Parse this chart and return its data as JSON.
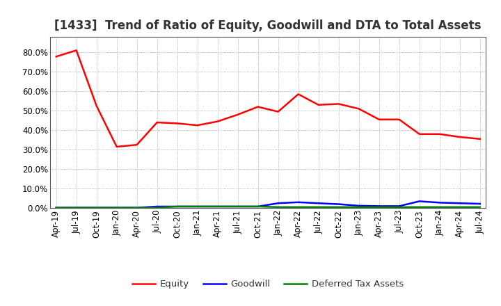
{
  "title": "[1433]  Trend of Ratio of Equity, Goodwill and DTA to Total Assets",
  "x_labels": [
    "Apr-19",
    "Jul-19",
    "Oct-19",
    "Jan-20",
    "Apr-20",
    "Jul-20",
    "Oct-20",
    "Jan-21",
    "Apr-21",
    "Jul-21",
    "Oct-21",
    "Jan-22",
    "Apr-22",
    "Jul-22",
    "Oct-22",
    "Jan-23",
    "Apr-23",
    "Jul-23",
    "Oct-23",
    "Jan-24",
    "Apr-24",
    "Jul-24"
  ],
  "equity": [
    0.778,
    0.81,
    0.525,
    0.315,
    0.325,
    0.44,
    0.435,
    0.425,
    0.445,
    0.48,
    0.52,
    0.495,
    0.585,
    0.53,
    0.535,
    0.51,
    0.455,
    0.455,
    0.38,
    0.38,
    0.365,
    0.355
  ],
  "goodwill": [
    0.002,
    0.002,
    0.002,
    0.002,
    0.002,
    0.008,
    0.008,
    0.008,
    0.008,
    0.008,
    0.008,
    0.025,
    0.03,
    0.025,
    0.02,
    0.012,
    0.01,
    0.01,
    0.035,
    0.028,
    0.025,
    0.022
  ],
  "dta": [
    0.002,
    0.002,
    0.002,
    0.002,
    0.002,
    0.002,
    0.008,
    0.008,
    0.008,
    0.008,
    0.008,
    0.005,
    0.005,
    0.005,
    0.005,
    0.005,
    0.005,
    0.005,
    0.005,
    0.005,
    0.005,
    0.005
  ],
  "equity_color": "#FF0000",
  "goodwill_color": "#0000FF",
  "dta_color": "#008000",
  "bg_color": "#FFFFFF",
  "plot_bg_color": "#FFFFFF",
  "ylim": [
    0.0,
    0.88
  ],
  "yticks": [
    0.0,
    0.1,
    0.2,
    0.3,
    0.4,
    0.5,
    0.6,
    0.7,
    0.8
  ],
  "legend_labels": [
    "Equity",
    "Goodwill",
    "Deferred Tax Assets"
  ],
  "title_fontsize": 12,
  "axis_fontsize": 8.5,
  "legend_fontsize": 9.5
}
